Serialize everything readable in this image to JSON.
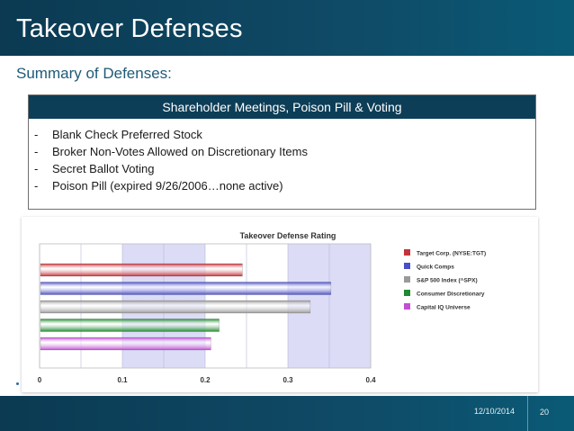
{
  "slide": {
    "title": "Takeover Defenses",
    "subtitle": "Summary of Defenses:",
    "box_header": "Shareholder Meetings, Poison Pill & Voting",
    "items": [
      "Blank Check Preferred Stock",
      "Broker Non-Votes Allowed on Discretionary Items",
      "Secret Ballot Voting",
      "Poison Pill (expired 9/26/2006…none active)"
    ],
    "item_bullet": "-",
    "date": "12/10/2014",
    "page": "20"
  },
  "chart_data": {
    "type": "bar",
    "orientation": "horizontal",
    "title": "Takeover Defense Rating",
    "categories": [
      "Target Corp. (NYSE:TGT)",
      "Quick Comps",
      "S&P 500 Index (^SPX)",
      "Consumer Discretionary",
      "Capital IQ Universe"
    ],
    "values": [
      0.245,
      0.352,
      0.327,
      0.217,
      0.207
    ],
    "colors": [
      "#c6333a",
      "#4a4fc4",
      "#9a9a9a",
      "#1f8a2e",
      "#c24fd4"
    ],
    "xlim": [
      0,
      0.4
    ],
    "xticks": [
      "0",
      "0.1",
      "0.2",
      "0.3",
      "0.4"
    ],
    "shaded_bands": [
      [
        0.1,
        0.2
      ],
      [
        0.3,
        0.4
      ]
    ],
    "legend_position": "right"
  }
}
